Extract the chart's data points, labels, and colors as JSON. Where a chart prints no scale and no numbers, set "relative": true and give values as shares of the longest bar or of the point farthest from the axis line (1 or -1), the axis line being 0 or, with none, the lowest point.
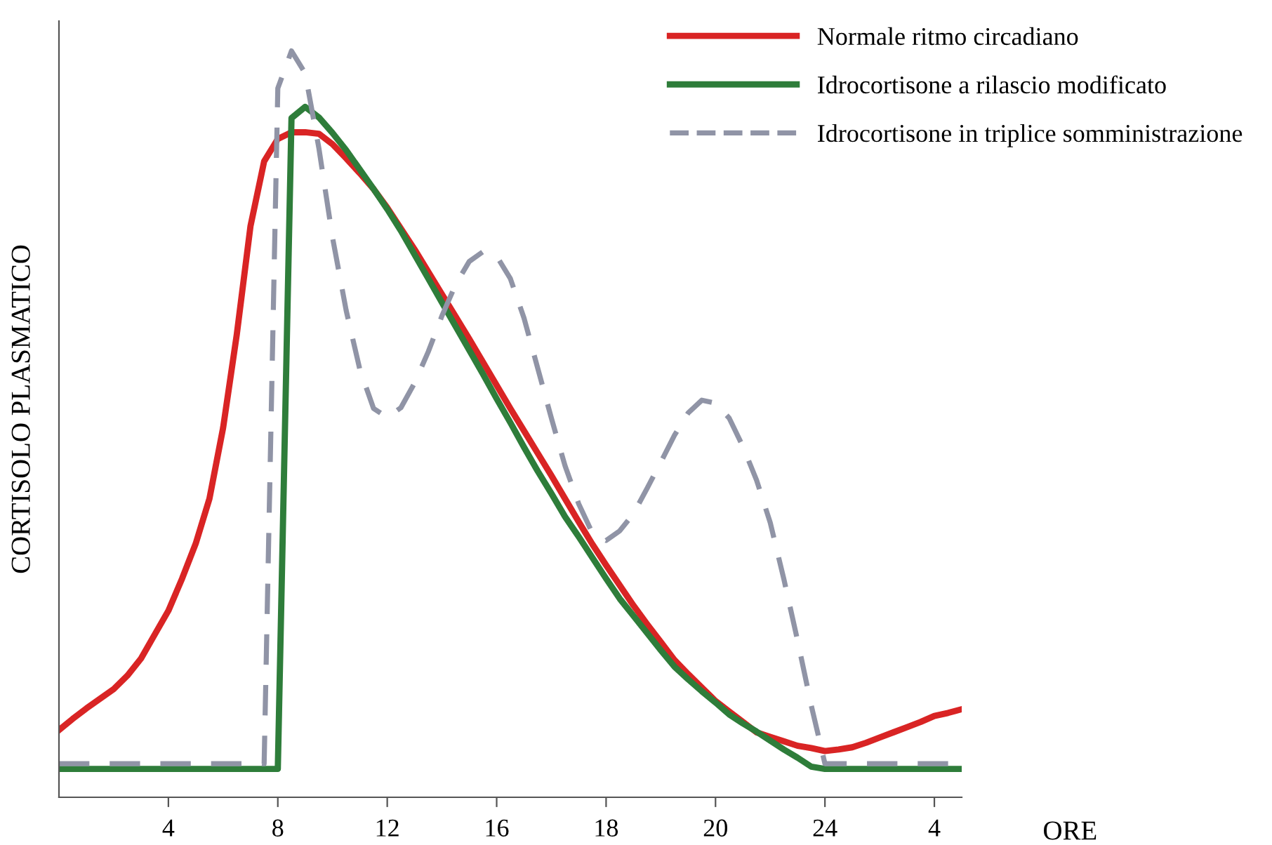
{
  "chart_data": {
    "type": "line",
    "ylabel": "CORTISOLO PLASMATICO",
    "xlabel": "ORE",
    "relative": true,
    "legend": "top right",
    "line_style": "solid",
    "marker": "none",
    "grid": false,
    "categories": [
      null,
      null,
      null,
      null,
      null,
      null,
      null,
      null,
      "4",
      null,
      null,
      null,
      null,
      null,
      null,
      null,
      "8",
      null,
      null,
      null,
      null,
      null,
      null,
      null,
      "12",
      null,
      null,
      null,
      null,
      null,
      null,
      null,
      "16",
      null,
      null,
      null,
      null,
      null,
      null,
      null,
      "18",
      null,
      null,
      null,
      null,
      null,
      null,
      null,
      "20",
      null,
      null,
      null,
      null,
      null,
      null,
      null,
      "24",
      null,
      null,
      null,
      null,
      null,
      null,
      null,
      "4",
      null,
      null
    ],
    "series": [
      {
        "name": "Normale ritmo circadiano",
        "color": "#d92424",
        "values": [
          0.09,
          0.105,
          0.119,
          0.132,
          0.145,
          0.163,
          0.186,
          0.218,
          0.25,
          0.293,
          0.34,
          0.4,
          0.495,
          0.62,
          0.765,
          0.852,
          0.882,
          0.891,
          0.891,
          0.889,
          0.875,
          0.856,
          0.836,
          0.815,
          0.79,
          0.762,
          0.734,
          0.704,
          0.674,
          0.644,
          0.614,
          0.583,
          0.552,
          0.521,
          0.491,
          0.461,
          0.431,
          0.4,
          0.369,
          0.339,
          0.311,
          0.284,
          0.257,
          0.232,
          0.208,
          0.184,
          0.165,
          0.147,
          0.129,
          0.115,
          0.101,
          0.087,
          0.081,
          0.075,
          0.069,
          0.066,
          0.062,
          0.064,
          0.067,
          0.073,
          0.08,
          0.087,
          0.094,
          0.101,
          0.109,
          0.113,
          0.118
        ]
      },
      {
        "name": "Idrocortisone a rilascio modificato",
        "color": "#2e7d3a",
        "values": [
          0.038,
          0.038,
          0.038,
          0.038,
          0.038,
          0.038,
          0.038,
          0.038,
          0.038,
          0.038,
          0.038,
          0.038,
          0.038,
          0.038,
          0.038,
          0.038,
          0.038,
          0.91,
          0.925,
          0.911,
          0.89,
          0.867,
          0.841,
          0.815,
          0.788,
          0.759,
          0.727,
          0.695,
          0.663,
          0.631,
          0.599,
          0.567,
          0.534,
          0.502,
          0.469,
          0.437,
          0.407,
          0.376,
          0.349,
          0.321,
          0.293,
          0.266,
          0.243,
          0.22,
          0.197,
          0.175,
          0.158,
          0.142,
          0.127,
          0.111,
          0.099,
          0.088,
          0.076,
          0.064,
          0.053,
          0.041,
          0.038,
          0.038,
          0.038,
          0.038,
          0.038,
          0.038,
          0.038,
          0.038,
          0.038,
          0.038,
          0.038
        ]
      },
      {
        "name": "Idrocortisone in triplice somministrazione",
        "color": "#9094a6",
        "line_style": "dashed",
        "values": [
          0.045,
          0.045,
          0.045,
          0.045,
          0.045,
          0.045,
          0.045,
          0.045,
          0.045,
          0.045,
          0.045,
          0.045,
          0.045,
          0.045,
          0.045,
          0.045,
          0.95,
          1.0,
          0.97,
          0.87,
          0.75,
          0.652,
          0.573,
          0.521,
          0.509,
          0.522,
          0.555,
          0.597,
          0.645,
          0.687,
          0.718,
          0.731,
          0.725,
          0.695,
          0.642,
          0.575,
          0.508,
          0.444,
          0.393,
          0.354,
          0.344,
          0.357,
          0.38,
          0.414,
          0.449,
          0.485,
          0.515,
          0.532,
          0.528,
          0.508,
          0.47,
          0.425,
          0.368,
          0.292,
          0.21,
          0.123,
          0.045,
          0.045,
          0.045,
          0.045,
          0.045,
          0.045,
          0.045,
          0.045,
          0.045,
          0.045,
          0.045
        ]
      }
    ]
  }
}
